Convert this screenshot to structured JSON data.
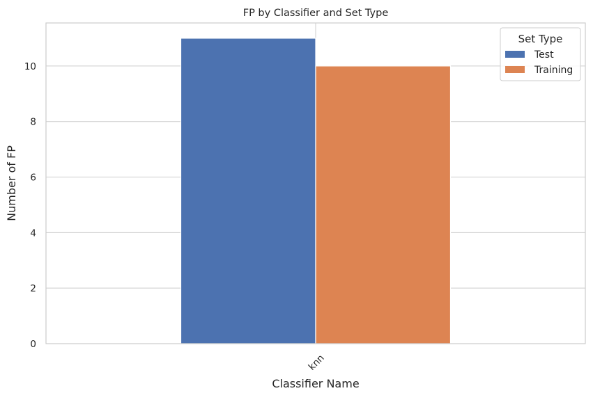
{
  "chart_data": {
    "type": "bar",
    "title": "FP by Classifier and Set Type",
    "xlabel": "Classifier Name",
    "ylabel": "Number of FP",
    "categories": [
      "knn"
    ],
    "series": [
      {
        "name": "Test",
        "values": [
          11
        ],
        "color": "#4c72b0"
      },
      {
        "name": "Training",
        "values": [
          10
        ],
        "color": "#dd8452"
      }
    ],
    "ylim": [
      0,
      11.55
    ],
    "yticks": [
      0,
      2,
      4,
      6,
      8,
      10
    ],
    "grid": true,
    "legend": {
      "title": "Set Type",
      "placement": "top-right"
    }
  }
}
